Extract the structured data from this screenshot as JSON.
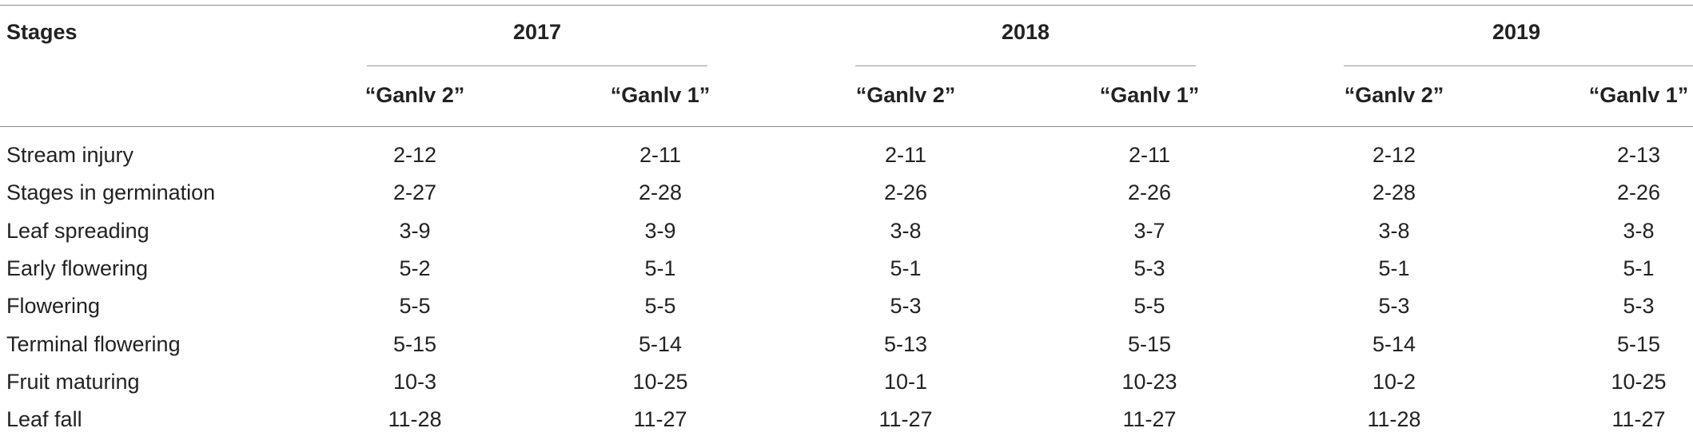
{
  "table": {
    "stub_header": "Stages",
    "years": [
      "2017",
      "2018",
      "2019"
    ],
    "cultivars": [
      "“Ganlv 2”",
      "“Ganlv 1”",
      "“Ganlv 2”",
      "“Ganlv 1”",
      "“Ganlv 2”",
      "“Ganlv 1”"
    ],
    "rows": [
      {
        "stage": "Stream injury",
        "values": [
          "2-12",
          "2-11",
          "2-11",
          "2-11",
          "2-12",
          "2-13"
        ]
      },
      {
        "stage": "Stages in germination",
        "values": [
          "2-27",
          "2-28",
          "2-26",
          "2-26",
          "2-28",
          "2-26"
        ]
      },
      {
        "stage": "Leaf spreading",
        "values": [
          "3-9",
          "3-9",
          "3-8",
          "3-7",
          "3-8",
          "3-8"
        ]
      },
      {
        "stage": "Early flowering",
        "values": [
          "5-2",
          "5-1",
          "5-1",
          "5-3",
          "5-1",
          "5-1"
        ]
      },
      {
        "stage": "Flowering",
        "values": [
          "5-5",
          "5-5",
          "5-3",
          "5-5",
          "5-3",
          "5-3"
        ]
      },
      {
        "stage": "Terminal flowering",
        "values": [
          "5-15",
          "5-14",
          "5-13",
          "5-15",
          "5-14",
          "5-15"
        ]
      },
      {
        "stage": "Fruit maturing",
        "values": [
          "10-3",
          "10-25",
          "10-1",
          "10-23",
          "10-2",
          "10-25"
        ]
      },
      {
        "stage": "Leaf fall",
        "values": [
          "11-28",
          "11-27",
          "11-27",
          "11-27",
          "11-28",
          "11-27"
        ]
      }
    ]
  }
}
